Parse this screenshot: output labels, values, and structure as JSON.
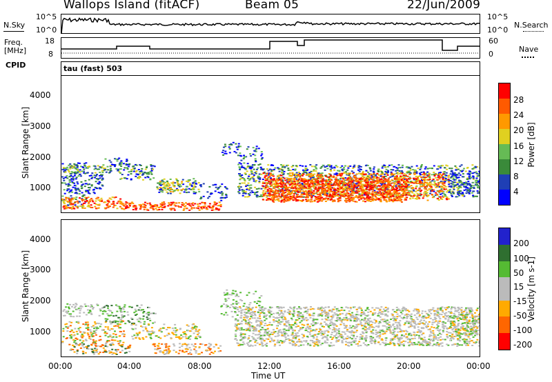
{
  "header": {
    "station": "Wallops Island (fitACF)",
    "beam": "Beam 05",
    "date": "22/Jun/2009"
  },
  "top_panels": {
    "nsky_label": "N.Sky",
    "nsearch_label": "N.Search",
    "nsky_ticks": [
      "10^5",
      "10^0"
    ],
    "nsearch_ticks": [
      "10^5",
      "10^0"
    ],
    "freq_label_line1": "Freq.",
    "freq_label_line2": "[MHz]",
    "freq_ticks": [
      "18",
      "8"
    ],
    "nave_label": "Nave",
    "nave_ticks": [
      "60",
      "0"
    ],
    "cpid_label": "CPID",
    "cpid_value": "tau (fast) 503"
  },
  "colors": {
    "power": [
      "#0000ff",
      "#1f3fb5",
      "#3a8a3a",
      "#66bb55",
      "#e0d020",
      "#ff9900",
      "#ff5a00",
      "#ff0000"
    ],
    "velocity": [
      "#2222cc",
      "#2f6f30",
      "#55bb33",
      "#bbbbbb",
      "#ffaa00",
      "#ff6600",
      "#ff0000"
    ]
  },
  "chart_data": [
    {
      "type": "heatmap",
      "name": "power",
      "ylabel": "Slant Range [km]",
      "yticks": [
        "1000",
        "2000",
        "3000",
        "4000"
      ],
      "ylim": [
        200,
        4600
      ],
      "xlim": [
        "00:00",
        "24:00"
      ],
      "colorbar_label": "Power [dB]",
      "colorbar_ticks": [
        "4",
        "8",
        "12",
        "16",
        "20",
        "24",
        "28"
      ]
    },
    {
      "type": "heatmap",
      "name": "velocity",
      "ylabel": "Slant Range [km]",
      "yticks": [
        "1000",
        "2000",
        "3000",
        "4000"
      ],
      "ylim": [
        200,
        4600
      ],
      "xlabel": "Time UT",
      "xticks": [
        "00:00",
        "04:00",
        "08:00",
        "12:00",
        "16:00",
        "20:00",
        "00:00"
      ],
      "colorbar_label": "Velocity [m s-1]",
      "colorbar_ticks": [
        "200",
        "100",
        "50",
        "15",
        "-15",
        "-50",
        "-100",
        "-200"
      ]
    }
  ]
}
